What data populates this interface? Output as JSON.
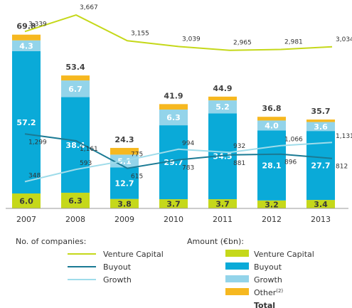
{
  "chart_data": {
    "type": "bar",
    "categories": [
      "2007",
      "2008",
      "2009",
      "2010",
      "2011",
      "2012",
      "2013"
    ],
    "stack_series": [
      {
        "name": "Venture Capital",
        "color": "#c5d81a",
        "values": [
          6.0,
          6.3,
          3.8,
          3.7,
          3.7,
          3.2,
          3.4
        ]
      },
      {
        "name": "Buyout",
        "color": "#0aaad8",
        "values": [
          57.2,
          38.4,
          12.7,
          29.7,
          34.5,
          28.1,
          27.7
        ]
      },
      {
        "name": "Growth",
        "color": "#93d4ea",
        "values": [
          4.3,
          6.7,
          5.1,
          6.3,
          5.2,
          4.0,
          3.6
        ]
      },
      {
        "name": "Other",
        "color": "#f6b820",
        "values": [
          2.3,
          2.0,
          2.7,
          2.2,
          1.5,
          1.5,
          1.0
        ]
      }
    ],
    "totals": [
      "69.8",
      "53.4",
      "24.3",
      "41.9",
      "44.9",
      "36.8",
      "35.7"
    ],
    "bar_labels": {
      "Venture Capital": [
        "6.0",
        "6.3",
        "3.8",
        "3.7",
        "3.7",
        "3.2",
        "3.4"
      ],
      "Buyout": [
        "57.2",
        "38.4",
        "12.7",
        "29.7",
        "34.5",
        "28.1",
        "27.7"
      ],
      "Growth": [
        "4.3",
        "6.7",
        "5.1",
        "6.3",
        "5.2",
        "4.0",
        "3.6"
      ]
    },
    "line_series": [
      {
        "name": "Venture Capital",
        "color": "#c5d81a",
        "values": [
          3339,
          3667,
          3155,
          3039,
          2965,
          2981,
          3034
        ],
        "labels": [
          "3,339",
          "3,667",
          "3,155",
          "3,039",
          "2,965",
          "2,981",
          "3,034"
        ]
      },
      {
        "name": "Buyout",
        "color": "#1a7a94",
        "values": [
          1299,
          1161,
          615,
          783,
          881,
          896,
          812
        ],
        "labels": [
          "1,299",
          "1,161",
          "615",
          "783",
          "881",
          "896",
          "812"
        ]
      },
      {
        "name": "Growth",
        "color": "#9fdcea",
        "values": [
          348,
          593,
          775,
          994,
          932,
          1066,
          1131
        ],
        "labels": [
          "348",
          "593",
          "775",
          "994",
          "932",
          "1,066",
          "1,131"
        ]
      }
    ]
  },
  "legend": {
    "count_title": "No. of companies:",
    "count_items": [
      {
        "name": "Venture Capital",
        "color": "#c5d81a"
      },
      {
        "name": "Buyout",
        "color": "#1a7a94"
      },
      {
        "name": "Growth",
        "color": "#9fdcea"
      }
    ],
    "amount_title": "Amount (€bn):",
    "amount_items": [
      {
        "name": "Venture Capital",
        "sup": "",
        "color": "#c5d81a"
      },
      {
        "name": "Buyout",
        "sup": "",
        "color": "#0aaad8"
      },
      {
        "name": "Growth",
        "sup": "",
        "color": "#93d4ea"
      },
      {
        "name": "Other",
        "sup": "(2)",
        "color": "#f6b820"
      }
    ],
    "total_label": "Total"
  }
}
